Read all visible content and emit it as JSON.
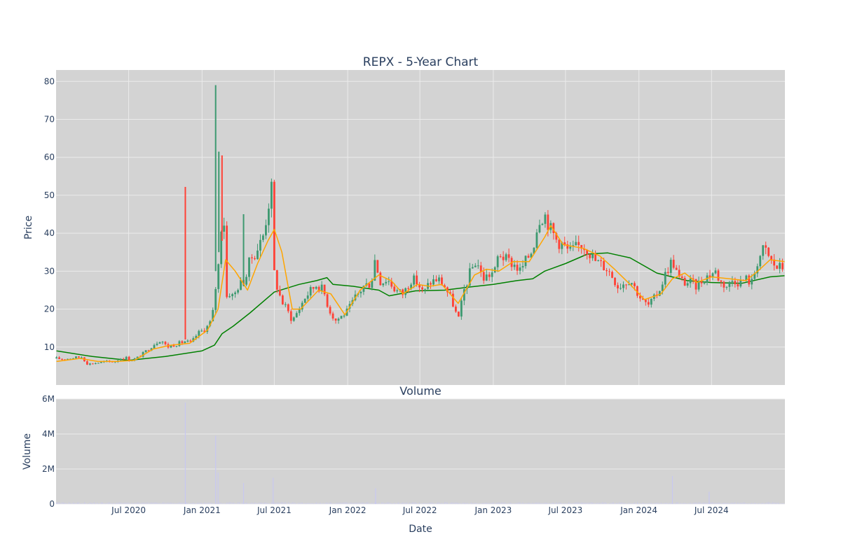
{
  "chart_data": {
    "type": "candlestick",
    "title": "REPX - 5-Year Chart",
    "subplot_title": "Volume",
    "xlabel": "Date",
    "ylabel_price": "Price",
    "ylabel_volume": "Volume",
    "x_range": [
      "2020-01-01",
      "2025-01-01"
    ],
    "price_ylim": [
      0,
      83
    ],
    "volume_ylim": [
      0,
      6000000
    ],
    "x_ticks": [
      {
        "date": "2020-07-01",
        "label": "Jul 2020"
      },
      {
        "date": "2021-01-01",
        "label": "Jan 2021"
      },
      {
        "date": "2021-07-01",
        "label": "Jul 2021"
      },
      {
        "date": "2022-01-01",
        "label": "Jan 2022"
      },
      {
        "date": "2022-07-01",
        "label": "Jul 2022"
      },
      {
        "date": "2023-01-01",
        "label": "Jan 2023"
      },
      {
        "date": "2023-07-01",
        "label": "Jul 2023"
      },
      {
        "date": "2024-01-01",
        "label": "Jan 2024"
      },
      {
        "date": "2024-07-01",
        "label": "Jul 2024"
      }
    ],
    "price_ticks": [
      {
        "value": 10,
        "label": "10"
      },
      {
        "value": 20,
        "label": "20"
      },
      {
        "value": 30,
        "label": "30"
      },
      {
        "value": 40,
        "label": "40"
      },
      {
        "value": 50,
        "label": "50"
      },
      {
        "value": 60,
        "label": "60"
      },
      {
        "value": 70,
        "label": "70"
      },
      {
        "value": 80,
        "label": "80"
      }
    ],
    "volume_ticks": [
      {
        "value": 0,
        "label": "0"
      },
      {
        "value": 2000000,
        "label": "2M"
      },
      {
        "value": 4000000,
        "label": "4M"
      },
      {
        "value": 6000000,
        "label": "6M"
      }
    ],
    "colors": {
      "plot_bg": "#d3d3d3",
      "grid": "#ebebeb",
      "increasing": "#3d9970",
      "decreasing": "#ff4136",
      "ma_short": "#ffa500",
      "ma_long": "#008000",
      "volume": "#c8c8f0"
    },
    "close_path": [
      [
        "2020-01-02",
        7
      ],
      [
        "2020-01-20",
        6.8
      ],
      [
        "2020-02-15",
        7.2
      ],
      [
        "2020-03-05",
        7.4
      ],
      [
        "2020-03-20",
        5.5
      ],
      [
        "2020-04-10",
        5.8
      ],
      [
        "2020-04-25",
        6.0
      ],
      [
        "2020-05-10",
        6.2
      ],
      [
        "2020-05-25",
        6.1
      ],
      [
        "2020-06-10",
        7.0
      ],
      [
        "2020-06-25",
        7.2
      ],
      [
        "2020-07-05",
        6.5
      ],
      [
        "2020-07-20",
        7.0
      ],
      [
        "2020-08-05",
        8.2
      ],
      [
        "2020-08-20",
        9.5
      ],
      [
        "2020-09-05",
        11.0
      ],
      [
        "2020-09-20",
        12.0
      ],
      [
        "2020-10-05",
        10.0
      ],
      [
        "2020-10-20",
        10.5
      ],
      [
        "2020-11-05",
        11.0
      ],
      [
        "2020-11-20",
        11.5
      ],
      [
        "2020-12-05",
        11.0
      ],
      [
        "2020-12-20",
        13.5
      ],
      [
        "2021-01-05",
        14.5
      ],
      [
        "2021-01-15",
        15.5
      ],
      [
        "2021-01-25",
        17.0
      ],
      [
        "2021-02-01",
        22.0
      ],
      [
        "2021-02-05",
        27.0
      ],
      [
        "2021-02-10",
        30.0
      ],
      [
        "2021-02-18",
        42.0
      ],
      [
        "2021-02-23",
        48.0
      ],
      [
        "2021-03-01",
        33.0
      ],
      [
        "2021-03-05",
        20.0
      ],
      [
        "2021-03-12",
        25.0
      ],
      [
        "2021-03-20",
        23.0
      ],
      [
        "2021-04-01",
        26.0
      ],
      [
        "2021-04-10",
        27.0
      ],
      [
        "2021-04-20",
        28.0
      ],
      [
        "2021-05-01",
        33.0
      ],
      [
        "2021-05-15",
        35.0
      ],
      [
        "2021-05-25",
        37.0
      ],
      [
        "2021-06-05",
        40.0
      ],
      [
        "2021-06-15",
        47.0
      ],
      [
        "2021-06-25",
        52.0
      ],
      [
        "2021-06-30",
        30.0
      ],
      [
        "2021-07-10",
        25.0
      ],
      [
        "2021-07-20",
        22.0
      ],
      [
        "2021-08-01",
        20.0
      ],
      [
        "2021-08-15",
        17.0
      ],
      [
        "2021-09-01",
        20.0
      ],
      [
        "2021-09-15",
        23.0
      ],
      [
        "2021-10-01",
        25.0
      ],
      [
        "2021-10-15",
        26.5
      ],
      [
        "2021-11-01",
        25.0
      ],
      [
        "2021-11-15",
        20.0
      ],
      [
        "2021-12-01",
        17.0
      ],
      [
        "2021-12-15",
        18.0
      ],
      [
        "2022-01-01",
        19.5
      ],
      [
        "2022-01-20",
        23.0
      ],
      [
        "2022-02-10",
        26.0
      ],
      [
        "2022-03-01",
        27.0
      ],
      [
        "2022-03-10",
        33.0
      ],
      [
        "2022-03-25",
        27.0
      ],
      [
        "2022-04-10",
        28.0
      ],
      [
        "2022-05-01",
        25.0
      ],
      [
        "2022-05-20",
        24.0
      ],
      [
        "2022-06-10",
        28.0
      ],
      [
        "2022-06-25",
        27.0
      ],
      [
        "2022-07-10",
        24.0
      ],
      [
        "2022-07-25",
        27.0
      ],
      [
        "2022-08-15",
        28.0
      ],
      [
        "2022-09-01",
        26.0
      ],
      [
        "2022-09-20",
        22.0
      ],
      [
        "2022-10-05",
        17.0
      ],
      [
        "2022-10-20",
        25.0
      ],
      [
        "2022-11-05",
        30.0
      ],
      [
        "2022-11-20",
        33.0
      ],
      [
        "2022-12-05",
        28.0
      ],
      [
        "2022-12-20",
        29.0
      ],
      [
        "2023-01-05",
        30.0
      ],
      [
        "2023-01-15",
        35.0
      ],
      [
        "2023-02-01",
        33.0
      ],
      [
        "2023-02-20",
        32.0
      ],
      [
        "2023-03-10",
        30.0
      ],
      [
        "2023-03-25",
        33.0
      ],
      [
        "2023-04-10",
        36.0
      ],
      [
        "2023-04-25",
        44.0
      ],
      [
        "2023-05-10",
        45.0
      ],
      [
        "2023-05-25",
        41.0
      ],
      [
        "2023-06-10",
        38.0
      ],
      [
        "2023-06-25",
        37.0
      ],
      [
        "2023-07-10",
        35.0
      ],
      [
        "2023-07-25",
        36.0
      ],
      [
        "2023-08-10",
        37.0
      ],
      [
        "2023-08-25",
        36.0
      ],
      [
        "2023-09-10",
        33.0
      ],
      [
        "2023-09-25",
        32.0
      ],
      [
        "2023-10-10",
        31.0
      ],
      [
        "2023-10-25",
        29.0
      ],
      [
        "2023-11-10",
        26.0
      ],
      [
        "2023-11-25",
        27.0
      ],
      [
        "2023-12-10",
        28.0
      ],
      [
        "2023-12-25",
        25.0
      ],
      [
        "2024-01-10",
        22.0
      ],
      [
        "2024-01-25",
        21.0
      ],
      [
        "2024-02-10",
        23.0
      ],
      [
        "2024-02-25",
        26.0
      ],
      [
        "2024-03-10",
        30.0
      ],
      [
        "2024-03-25",
        33.0
      ],
      [
        "2024-04-10",
        28.0
      ],
      [
        "2024-04-25",
        27.0
      ],
      [
        "2024-05-10",
        27.0
      ],
      [
        "2024-05-25",
        26.0
      ],
      [
        "2024-06-10",
        28.0
      ],
      [
        "2024-06-25",
        29.0
      ],
      [
        "2024-07-10",
        30.0
      ],
      [
        "2024-07-25",
        27.0
      ],
      [
        "2024-08-10",
        26.0
      ],
      [
        "2024-08-25",
        28.0
      ],
      [
        "2024-09-10",
        27.0
      ],
      [
        "2024-09-25",
        28.0
      ],
      [
        "2024-10-10",
        27.0
      ],
      [
        "2024-10-25",
        33.0
      ],
      [
        "2024-11-10",
        36.0
      ],
      [
        "2024-11-25",
        33.0
      ],
      [
        "2024-12-10",
        31.0
      ],
      [
        "2024-12-31",
        31.0
      ]
    ],
    "spikes": [
      {
        "date": "2020-11-20",
        "high": 52.2,
        "low": 12.0,
        "direction": "down"
      },
      {
        "date": "2021-02-04",
        "high": 79.0,
        "low": 30.0,
        "direction": "up"
      },
      {
        "date": "2021-02-12",
        "high": 61.5,
        "low": 35.0,
        "direction": "up"
      },
      {
        "date": "2021-02-20",
        "high": 60.5,
        "low": 38.0,
        "direction": "down"
      },
      {
        "date": "2021-04-15",
        "high": 45.0,
        "low": 26.0,
        "direction": "up"
      }
    ],
    "ma_short": [
      [
        "2020-01-02",
        6.2
      ],
      [
        "2020-03-01",
        7.0
      ],
      [
        "2020-04-15",
        6.2
      ],
      [
        "2020-06-01",
        6.2
      ],
      [
        "2020-07-15",
        6.5
      ],
      [
        "2020-09-01",
        9.5
      ],
      [
        "2020-10-15",
        10.5
      ],
      [
        "2020-12-01",
        11.0
      ],
      [
        "2021-01-15",
        14.5
      ],
      [
        "2021-02-10",
        20.0
      ],
      [
        "2021-03-01",
        33.0
      ],
      [
        "2021-03-25",
        30.0
      ],
      [
        "2021-04-25",
        25.0
      ],
      [
        "2021-05-20",
        32.0
      ],
      [
        "2021-06-15",
        38.0
      ],
      [
        "2021-07-01",
        41.0
      ],
      [
        "2021-07-20",
        35.0
      ],
      [
        "2021-08-15",
        20.0
      ],
      [
        "2021-09-05",
        20.0
      ],
      [
        "2021-10-20",
        25.0
      ],
      [
        "2021-11-20",
        24.0
      ],
      [
        "2021-12-25",
        18.5
      ],
      [
        "2022-02-01",
        25.0
      ],
      [
        "2022-03-20",
        29.0
      ],
      [
        "2022-04-20",
        27.5
      ],
      [
        "2022-05-20",
        24.0
      ],
      [
        "2022-06-25",
        26.5
      ],
      [
        "2022-07-25",
        26.0
      ],
      [
        "2022-08-25",
        26.5
      ],
      [
        "2022-10-05",
        21.5
      ],
      [
        "2022-11-15",
        29.0
      ],
      [
        "2022-12-15",
        30.5
      ],
      [
        "2023-01-15",
        30.0
      ],
      [
        "2023-02-20",
        32.5
      ],
      [
        "2023-04-01",
        32.5
      ],
      [
        "2023-05-10",
        39.0
      ],
      [
        "2023-05-25",
        42.0
      ],
      [
        "2023-06-25",
        37.0
      ],
      [
        "2023-08-15",
        36.0
      ],
      [
        "2023-09-25",
        34.0
      ],
      [
        "2023-11-01",
        30.5
      ],
      [
        "2023-12-10",
        26.5
      ],
      [
        "2024-01-15",
        22.5
      ],
      [
        "2024-02-25",
        24.0
      ],
      [
        "2024-03-25",
        28.0
      ],
      [
        "2024-04-25",
        29.5
      ],
      [
        "2024-05-25",
        27.0
      ],
      [
        "2024-07-01",
        28.5
      ],
      [
        "2024-08-15",
        28.0
      ],
      [
        "2024-09-25",
        27.5
      ],
      [
        "2024-10-25",
        30.0
      ],
      [
        "2024-11-25",
        33.0
      ],
      [
        "2024-12-31",
        32.5
      ]
    ],
    "ma_long": [
      [
        "2020-01-02",
        9.0
      ],
      [
        "2020-04-01",
        7.5
      ],
      [
        "2020-07-01",
        6.5
      ],
      [
        "2020-10-01",
        7.5
      ],
      [
        "2021-01-01",
        9.0
      ],
      [
        "2021-02-01",
        10.5
      ],
      [
        "2021-02-20",
        13.5
      ],
      [
        "2021-03-20",
        15.5
      ],
      [
        "2021-05-01",
        19.0
      ],
      [
        "2021-07-01",
        24.5
      ],
      [
        "2021-09-01",
        26.5
      ],
      [
        "2021-10-15",
        27.5
      ],
      [
        "2021-11-10",
        28.3
      ],
      [
        "2021-11-25",
        26.5
      ],
      [
        "2022-01-15",
        26.0
      ],
      [
        "2022-03-20",
        25.0
      ],
      [
        "2022-04-15",
        23.5
      ],
      [
        "2022-06-20",
        24.8
      ],
      [
        "2022-09-01",
        25.0
      ],
      [
        "2022-11-01",
        25.8
      ],
      [
        "2023-01-01",
        26.5
      ],
      [
        "2023-03-01",
        27.5
      ],
      [
        "2023-04-10",
        28.0
      ],
      [
        "2023-05-10",
        30.0
      ],
      [
        "2023-07-01",
        32.0
      ],
      [
        "2023-08-25",
        34.5
      ],
      [
        "2023-10-15",
        34.8
      ],
      [
        "2023-12-10",
        33.5
      ],
      [
        "2024-02-15",
        29.5
      ],
      [
        "2024-05-01",
        27.5
      ],
      [
        "2024-07-01",
        27.0
      ],
      [
        "2024-09-15",
        26.8
      ],
      [
        "2024-11-25",
        28.5
      ],
      [
        "2024-12-31",
        28.8
      ]
    ],
    "volume_spikes": [
      {
        "date": "2020-11-20",
        "value": 5800000
      },
      {
        "date": "2021-02-04",
        "value": 3900000
      },
      {
        "date": "2021-02-10",
        "value": 1800000
      },
      {
        "date": "2021-04-15",
        "value": 1200000
      },
      {
        "date": "2021-06-28",
        "value": 1500000
      },
      {
        "date": "2022-03-12",
        "value": 900000
      },
      {
        "date": "2024-03-25",
        "value": 1600000
      },
      {
        "date": "2024-06-25",
        "value": 700000
      }
    ]
  }
}
